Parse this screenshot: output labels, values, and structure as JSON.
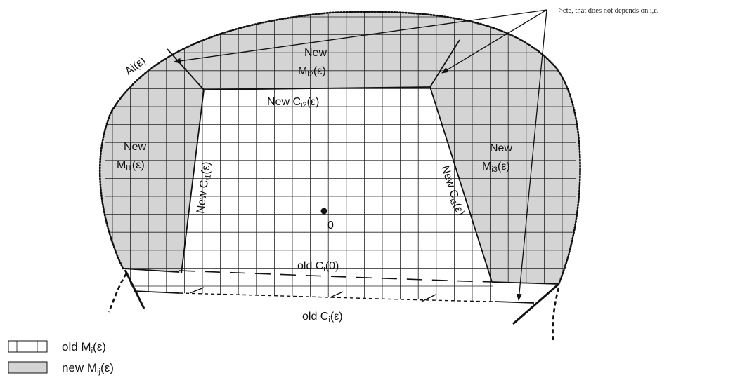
{
  "annotation": {
    "note": ">cte, that does not depends on i,ε."
  },
  "labels": {
    "ai_eps": "Ai(ε)",
    "new_mi2_new": "New",
    "new_mi2_m": "M",
    "new_mi2_sub": "i2",
    "new_mi2_eps": "(ε)",
    "new_ci2_prefix": "New C",
    "new_ci2_sub": "i2",
    "new_ci2_eps": "(ε)",
    "new_mi1_new": "New",
    "new_mi1_m": "M",
    "new_mi1_sub": "i1",
    "new_mi1_eps": "(ε)",
    "new_ci1_prefix": "New C",
    "new_ci1_sub": "i1",
    "new_ci1_eps": "(ε)",
    "new_mi3_new": "New",
    "new_mi3_m": "M",
    "new_mi3_sub": "i3",
    "new_mi3_eps": "(ε)",
    "new_ci3_prefix": "New C",
    "new_ci3_sub": "i3",
    "new_ci3_eps": "(ε)",
    "origin": "0",
    "old_ci0_prefix": "old C",
    "old_ci0_sub": "i",
    "old_ci0_eps": "(0)",
    "old_cieps_prefix": "old C",
    "old_cieps_sub": "i",
    "old_cieps_eps": "(ε)"
  },
  "legend": {
    "old_prefix": "old M",
    "old_sub": "i",
    "old_eps": "(ε)",
    "new_prefix": "new M",
    "new_sub": "ij",
    "new_eps": "(ε)"
  },
  "colors": {
    "shade": "#d4d4d4",
    "grid": "#222222",
    "line": "#111111"
  }
}
